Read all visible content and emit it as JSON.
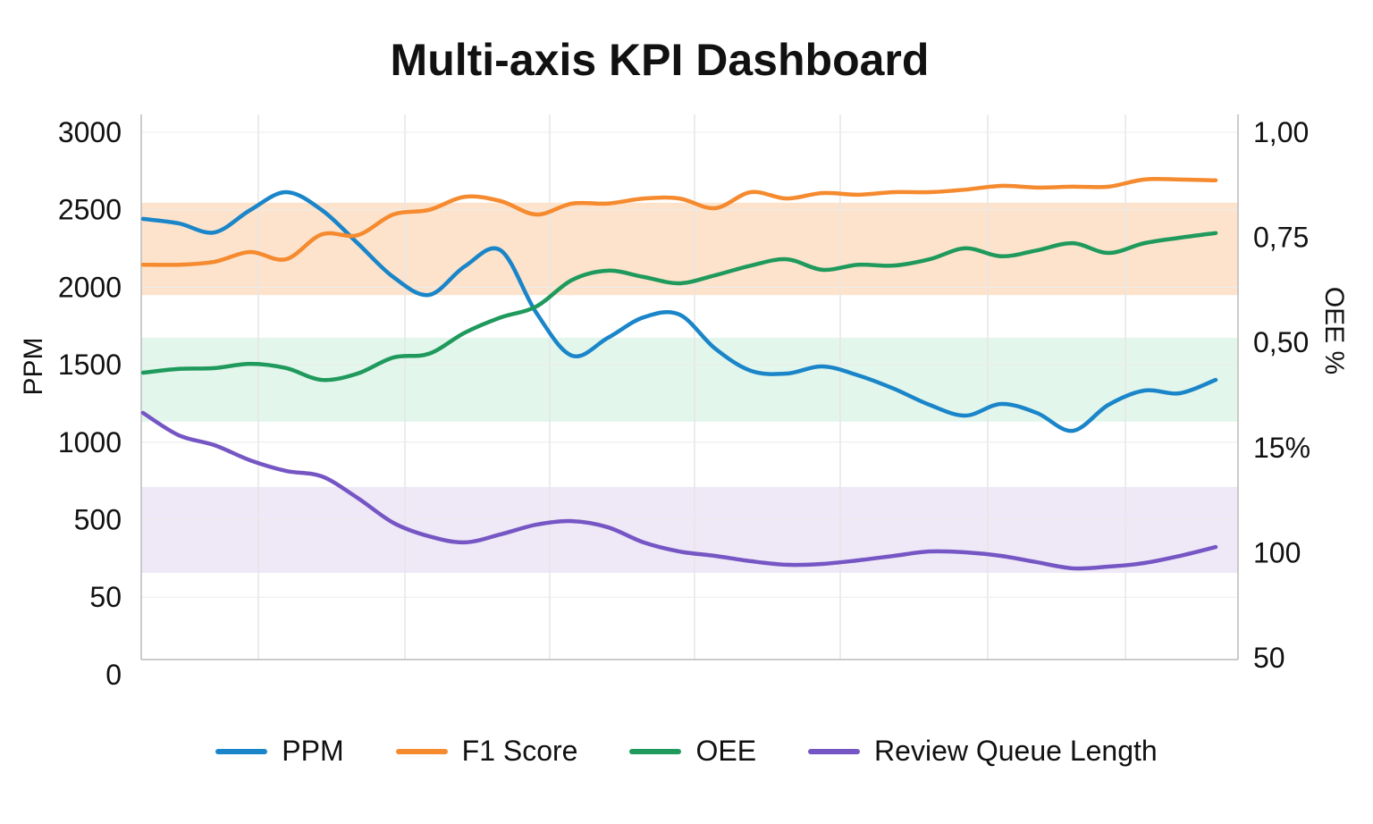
{
  "chart_data": {
    "type": "line",
    "title": "Multi-axis KPI Dashboard",
    "ylabel_left": "PPM",
    "ylabel_right": "OEE %",
    "left_ticks": [
      "3000",
      "2500",
      "2000",
      "1500",
      "1000",
      "500",
      "50",
      "0"
    ],
    "right_ticks": [
      "1,00",
      "0,75",
      "0,50",
      "15%",
      "100",
      "50"
    ],
    "grid": true,
    "legend_position": "bottom",
    "x": [
      0,
      1,
      2,
      3,
      4,
      5,
      6,
      7,
      8,
      9,
      10,
      11,
      12,
      13,
      14,
      15,
      16,
      17,
      18,
      19,
      20,
      21,
      22,
      23,
      24,
      25,
      26,
      27,
      28,
      29,
      30
    ],
    "series": [
      {
        "name": "PPM",
        "axis": "left",
        "color": "#1a85c8",
        "values": [
          2443,
          2414,
          2356,
          2500,
          2615,
          2500,
          2287,
          2069,
          1954,
          2138,
          2241,
          1839,
          1563,
          1678,
          1810,
          1828,
          1609,
          1466,
          1448,
          1494,
          1437,
          1351,
          1247,
          1178,
          1253,
          1195,
          1080,
          1247,
          1339,
          1322,
          1408
        ]
      },
      {
        "name": "F1 Score",
        "axis": "right",
        "color": "#f58a2e",
        "values": [
          0.686,
          0.686,
          0.693,
          0.716,
          0.699,
          0.758,
          0.756,
          0.805,
          0.816,
          0.847,
          0.837,
          0.805,
          0.831,
          0.831,
          0.843,
          0.843,
          0.82,
          0.858,
          0.843,
          0.856,
          0.852,
          0.858,
          0.858,
          0.864,
          0.873,
          0.869,
          0.871,
          0.871,
          0.888,
          0.888,
          0.886
        ]
      },
      {
        "name": "OEE",
        "axis": "right",
        "color": "#1f9a5c",
        "values": [
          0.43,
          0.439,
          0.441,
          0.451,
          0.441,
          0.413,
          0.428,
          0.466,
          0.475,
          0.525,
          0.561,
          0.587,
          0.65,
          0.672,
          0.657,
          0.642,
          0.661,
          0.684,
          0.699,
          0.674,
          0.686,
          0.684,
          0.699,
          0.725,
          0.706,
          0.72,
          0.737,
          0.714,
          0.737,
          0.75,
          0.761
        ]
      },
      {
        "name": "Review Queue Length",
        "axis": "right-lower",
        "color": "#7556c4",
        "values": [
          166.1,
          155.5,
          150.8,
          143.6,
          138.6,
          136.0,
          125.8,
          114.0,
          107.6,
          104.7,
          108.5,
          113.1,
          114.8,
          111.9,
          104.7,
          100.4,
          98.3,
          95.8,
          94.1,
          94.5,
          96.2,
          98.3,
          100.4,
          100.0,
          98.3,
          95.3,
          92.4,
          93.2,
          94.9,
          98.3,
          102.5
        ]
      }
    ],
    "bands": [
      {
        "series": "F1 Score",
        "range": [
          0.614,
          0.833
        ],
        "color": "#fde3cc"
      },
      {
        "series": "OEE",
        "range": [
          0.314,
          0.513
        ],
        "color": "#e3f6ec"
      },
      {
        "series": "Review Queue Length",
        "range": [
          90.3,
          131
        ],
        "color": "#efe8f7"
      }
    ]
  }
}
